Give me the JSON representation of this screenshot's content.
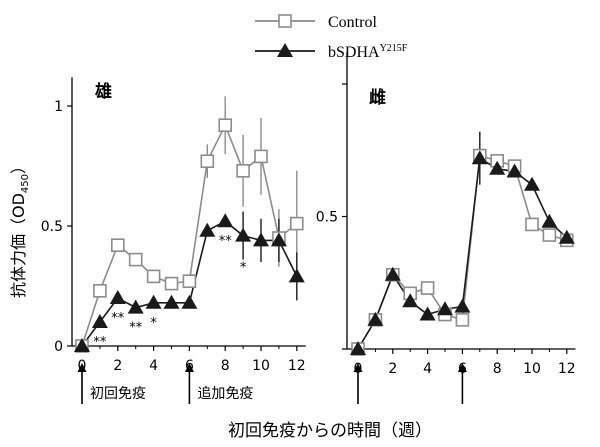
{
  "legend": {
    "control_label": "Control",
    "mutant_label": "bSDHA",
    "mutant_superscript": "Y215F"
  },
  "ylabel": {
    "main": "抗体力価（OD",
    "sub": "450",
    "close": "）"
  },
  "xlabel": "初回免疫からの時間（週）",
  "colors": {
    "control": "#8c8c8c",
    "mutant": "#1a1a1a"
  },
  "chart_data": [
    {
      "type": "line",
      "panel_label": "雄",
      "x_ticks": [
        0,
        2,
        4,
        6,
        8,
        10,
        12
      ],
      "y_ticks": [
        0,
        0.5,
        1
      ],
      "y_tick_labels": [
        "0",
        "0.5",
        "1"
      ],
      "xlim": [
        0,
        12.5
      ],
      "ylim": [
        0,
        1.1
      ],
      "arrows": [
        {
          "week": 0,
          "label": "初回免疫"
        },
        {
          "week": 6,
          "label": "追加免疫"
        }
      ],
      "significance": [
        {
          "week": 1,
          "mark": "**"
        },
        {
          "week": 2,
          "mark": "**"
        },
        {
          "week": 3,
          "mark": "**"
        },
        {
          "week": 4,
          "mark": "*"
        },
        {
          "week": 8,
          "mark": "**"
        },
        {
          "week": 9,
          "mark": "*"
        }
      ],
      "series": [
        {
          "name": "Control",
          "marker": "square",
          "x": [
            0,
            1,
            2,
            3,
            4,
            5,
            6,
            7,
            8,
            9,
            10,
            11,
            12
          ],
          "y": [
            0.0,
            0.23,
            0.42,
            0.36,
            0.29,
            0.26,
            0.27,
            0.77,
            0.92,
            0.73,
            0.79,
            0.45,
            0.51
          ],
          "err": [
            0.0,
            0.0,
            0.0,
            0.0,
            0.0,
            0.0,
            0.0,
            0.07,
            0.12,
            0.15,
            0.16,
            0.12,
            0.22
          ]
        },
        {
          "name": "bSDHA Y215F",
          "marker": "triangle",
          "x": [
            0,
            1,
            2,
            3,
            4,
            5,
            6,
            7,
            8,
            9,
            10,
            11,
            12
          ],
          "y": [
            0.0,
            0.1,
            0.2,
            0.16,
            0.18,
            0.18,
            0.18,
            0.48,
            0.52,
            0.46,
            0.44,
            0.44,
            0.29
          ],
          "err": [
            0.0,
            0.0,
            0.0,
            0.0,
            0.0,
            0.0,
            0.0,
            0.0,
            0.0,
            0.1,
            0.09,
            0.09,
            0.1
          ]
        }
      ]
    },
    {
      "type": "line",
      "panel_label": "雌",
      "x_ticks": [
        0,
        2,
        4,
        6,
        8,
        10,
        12
      ],
      "y_ticks": [
        0.5
      ],
      "y_tick_labels": [
        "0.5"
      ],
      "xlim": [
        0,
        12.5
      ],
      "ylim": [
        0,
        1.1
      ],
      "arrows": [
        {
          "week": 0
        },
        {
          "week": 6
        }
      ],
      "series": [
        {
          "name": "Control",
          "marker": "square",
          "x": [
            0,
            1,
            2,
            3,
            4,
            5,
            6,
            7,
            8,
            9,
            10,
            11,
            12
          ],
          "y": [
            0.0,
            0.11,
            0.28,
            0.21,
            0.23,
            0.13,
            0.11,
            0.73,
            0.71,
            0.69,
            0.47,
            0.43,
            0.41
          ],
          "err": [
            0.0,
            0.0,
            0.0,
            0.0,
            0.0,
            0.0,
            0.0,
            0.0,
            0.0,
            0.0,
            0.0,
            0.0,
            0.0
          ]
        },
        {
          "name": "bSDHA Y215F",
          "marker": "triangle",
          "x": [
            0,
            1,
            2,
            3,
            4,
            5,
            6,
            7,
            8,
            9,
            10,
            11,
            12
          ],
          "y": [
            0.0,
            0.11,
            0.28,
            0.18,
            0.13,
            0.15,
            0.16,
            0.72,
            0.68,
            0.67,
            0.62,
            0.48,
            0.42
          ],
          "err": [
            0.0,
            0.0,
            0.0,
            0.0,
            0.0,
            0.0,
            0.0,
            0.1,
            0.0,
            0.0,
            0.0,
            0.0,
            0.0
          ]
        }
      ]
    }
  ]
}
